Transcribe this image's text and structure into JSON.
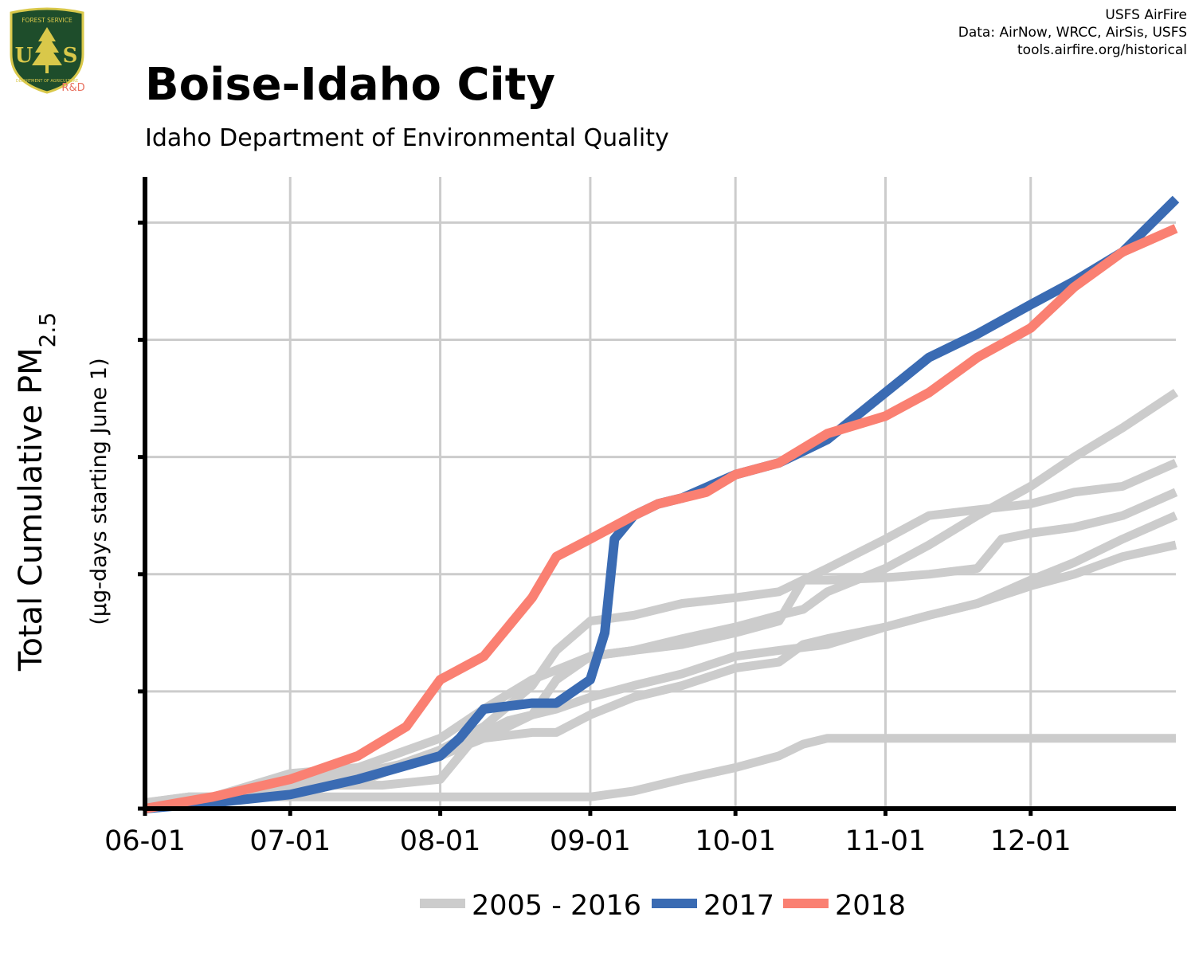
{
  "header": {
    "title": "Boise-Idaho City",
    "subtitle": "Idaho Department of Environmental Quality",
    "credits": [
      "USFS AirFire",
      "Data: AirNow, WRCC, AirSis, USFS",
      "tools.airfire.org/historical"
    ]
  },
  "logo": {
    "top_text": "FOREST SERVICE",
    "letters": "US",
    "bottom_text": "DEPARTMENT OF AGRICULTURE",
    "tag": "R&D",
    "colors": {
      "shield": "#1e4d2b",
      "border": "#d9c84a",
      "tag": "#e8705e"
    }
  },
  "colors": {
    "historical": "#cccccc",
    "2017": "#3a6bb3",
    "2018": "#fa8072",
    "grid": "#cccccc",
    "axis": "#000000"
  },
  "chart_data": {
    "type": "line",
    "ylabel": "Total Cumulative PM",
    "ylabel_sub": "2.5",
    "ylabel2": "(µg-days starting June 1)",
    "y_tick_labels_shown": false,
    "ylim": [
      0,
      5.2
    ],
    "grid": true,
    "legend_position": "bottom",
    "x_ticks": [
      "06-01",
      "07-01",
      "08-01",
      "09-01",
      "10-01",
      "11-01",
      "12-01"
    ],
    "legend": [
      "2005 - 2016",
      "2017",
      "2018"
    ],
    "series": [
      {
        "name": "2005 - 2016",
        "group": "historical",
        "points": [
          [
            "06-01",
            0.05
          ],
          [
            "06-10",
            0.1
          ],
          [
            "06-20",
            0.1
          ],
          [
            "07-01",
            0.12
          ],
          [
            "07-10",
            0.2
          ],
          [
            "07-20",
            0.2
          ],
          [
            "08-01",
            0.25
          ],
          [
            "08-08",
            0.6
          ],
          [
            "08-15",
            0.75
          ],
          [
            "08-25",
            0.85
          ],
          [
            "09-01",
            0.95
          ],
          [
            "09-10",
            1.05
          ],
          [
            "09-20",
            1.15
          ],
          [
            "10-01",
            1.3
          ],
          [
            "10-10",
            1.35
          ],
          [
            "10-20",
            1.4
          ],
          [
            "11-01",
            1.55
          ],
          [
            "11-10",
            1.65
          ],
          [
            "11-20",
            1.75
          ],
          [
            "12-01",
            1.95
          ],
          [
            "12-10",
            2.1
          ],
          [
            "12-20",
            2.3
          ],
          [
            "12-31",
            2.5
          ]
        ]
      },
      {
        "name": "2005 - 2016",
        "group": "historical",
        "points": [
          [
            "06-01",
            0.05
          ],
          [
            "06-15",
            0.1
          ],
          [
            "07-01",
            0.25
          ],
          [
            "07-15",
            0.3
          ],
          [
            "08-01",
            0.45
          ],
          [
            "08-10",
            0.6
          ],
          [
            "08-20",
            0.8
          ],
          [
            "08-25",
            1.1
          ],
          [
            "09-01",
            1.3
          ],
          [
            "09-10",
            1.35
          ],
          [
            "09-20",
            1.45
          ],
          [
            "10-01",
            1.55
          ],
          [
            "10-10",
            1.65
          ],
          [
            "10-15",
            1.7
          ],
          [
            "10-20",
            1.85
          ],
          [
            "11-01",
            2.05
          ],
          [
            "11-10",
            2.25
          ],
          [
            "11-20",
            2.5
          ],
          [
            "12-01",
            2.75
          ],
          [
            "12-10",
            3.0
          ],
          [
            "12-20",
            3.25
          ],
          [
            "12-31",
            3.55
          ]
        ]
      },
      {
        "name": "2005 - 2016",
        "group": "historical",
        "points": [
          [
            "06-01",
            0.05
          ],
          [
            "06-15",
            0.1
          ],
          [
            "07-01",
            0.3
          ],
          [
            "07-15",
            0.35
          ],
          [
            "08-01",
            0.6
          ],
          [
            "08-10",
            0.85
          ],
          [
            "08-20",
            1.1
          ],
          [
            "09-01",
            1.3
          ],
          [
            "09-10",
            1.35
          ],
          [
            "09-20",
            1.4
          ],
          [
            "10-01",
            1.5
          ],
          [
            "10-10",
            1.6
          ],
          [
            "10-15",
            1.95
          ],
          [
            "10-20",
            2.05
          ],
          [
            "11-01",
            2.3
          ],
          [
            "11-10",
            2.5
          ],
          [
            "11-20",
            2.55
          ],
          [
            "12-01",
            2.6
          ],
          [
            "12-10",
            2.7
          ],
          [
            "12-20",
            2.75
          ],
          [
            "12-31",
            2.95
          ]
        ]
      },
      {
        "name": "2005 - 2016",
        "group": "historical",
        "points": [
          [
            "06-01",
            0.05
          ],
          [
            "06-15",
            0.1
          ],
          [
            "07-01",
            0.2
          ],
          [
            "07-15",
            0.25
          ],
          [
            "08-01",
            0.5
          ],
          [
            "08-10",
            0.7
          ],
          [
            "08-20",
            1.05
          ],
          [
            "08-25",
            1.35
          ],
          [
            "09-01",
            1.6
          ],
          [
            "09-10",
            1.65
          ],
          [
            "09-20",
            1.75
          ],
          [
            "10-01",
            1.8
          ],
          [
            "10-10",
            1.85
          ],
          [
            "10-15",
            1.95
          ],
          [
            "10-20",
            1.95
          ],
          [
            "11-01",
            1.97
          ],
          [
            "11-10",
            2.0
          ],
          [
            "11-20",
            2.05
          ],
          [
            "11-25",
            2.3
          ],
          [
            "12-01",
            2.35
          ],
          [
            "12-10",
            2.4
          ],
          [
            "12-20",
            2.5
          ],
          [
            "12-31",
            2.7
          ]
        ]
      },
      {
        "name": "2005 - 2016",
        "group": "historical",
        "points": [
          [
            "06-01",
            0.05
          ],
          [
            "06-15",
            0.1
          ],
          [
            "07-01",
            0.18
          ],
          [
            "07-15",
            0.22
          ],
          [
            "08-01",
            0.5
          ],
          [
            "08-10",
            0.6
          ],
          [
            "08-20",
            0.65
          ],
          [
            "08-25",
            0.65
          ],
          [
            "09-01",
            0.8
          ],
          [
            "09-10",
            0.95
          ],
          [
            "09-20",
            1.05
          ],
          [
            "10-01",
            1.2
          ],
          [
            "10-10",
            1.25
          ],
          [
            "10-15",
            1.4
          ],
          [
            "10-20",
            1.45
          ],
          [
            "11-01",
            1.55
          ],
          [
            "11-10",
            1.65
          ],
          [
            "11-20",
            1.75
          ],
          [
            "12-01",
            1.9
          ],
          [
            "12-10",
            2.0
          ],
          [
            "12-20",
            2.15
          ],
          [
            "12-31",
            2.25
          ]
        ]
      },
      {
        "name": "2005 - 2016",
        "group": "historical",
        "points": [
          [
            "06-01",
            0.05
          ],
          [
            "06-10",
            0.1
          ],
          [
            "07-01",
            0.1
          ],
          [
            "07-15",
            0.1
          ],
          [
            "08-01",
            0.1
          ],
          [
            "08-20",
            0.1
          ],
          [
            "09-01",
            0.1
          ],
          [
            "09-10",
            0.15
          ],
          [
            "09-20",
            0.25
          ],
          [
            "10-01",
            0.35
          ],
          [
            "10-10",
            0.45
          ],
          [
            "10-15",
            0.55
          ],
          [
            "10-20",
            0.6
          ],
          [
            "11-01",
            0.6
          ],
          [
            "11-20",
            0.6
          ],
          [
            "12-01",
            0.6
          ],
          [
            "12-20",
            0.6
          ],
          [
            "12-31",
            0.6
          ]
        ]
      },
      {
        "name": "2017",
        "group": "2017",
        "points": [
          [
            "06-01",
            0.0
          ],
          [
            "06-15",
            0.05
          ],
          [
            "07-01",
            0.12
          ],
          [
            "07-15",
            0.25
          ],
          [
            "08-01",
            0.45
          ],
          [
            "08-05",
            0.6
          ],
          [
            "08-10",
            0.85
          ],
          [
            "08-20",
            0.9
          ],
          [
            "08-25",
            0.9
          ],
          [
            "09-01",
            1.1
          ],
          [
            "09-04",
            1.5
          ],
          [
            "09-06",
            2.3
          ],
          [
            "09-10",
            2.5
          ],
          [
            "09-15",
            2.6
          ],
          [
            "09-20",
            2.65
          ],
          [
            "10-01",
            2.85
          ],
          [
            "10-10",
            2.95
          ],
          [
            "10-20",
            3.15
          ],
          [
            "11-01",
            3.55
          ],
          [
            "11-10",
            3.85
          ],
          [
            "11-20",
            4.05
          ],
          [
            "12-01",
            4.3
          ],
          [
            "12-10",
            4.5
          ],
          [
            "12-20",
            4.75
          ],
          [
            "12-31",
            5.2
          ]
        ]
      },
      {
        "name": "2018",
        "group": "2018",
        "points": [
          [
            "06-01",
            0.0
          ],
          [
            "06-15",
            0.1
          ],
          [
            "07-01",
            0.25
          ],
          [
            "07-15",
            0.45
          ],
          [
            "07-25",
            0.7
          ],
          [
            "08-01",
            1.1
          ],
          [
            "08-10",
            1.3
          ],
          [
            "08-20",
            1.8
          ],
          [
            "08-25",
            2.15
          ],
          [
            "09-01",
            2.3
          ],
          [
            "09-10",
            2.5
          ],
          [
            "09-15",
            2.6
          ],
          [
            "09-25",
            2.7
          ],
          [
            "10-01",
            2.85
          ],
          [
            "10-10",
            2.95
          ],
          [
            "10-20",
            3.2
          ],
          [
            "11-01",
            3.35
          ],
          [
            "11-10",
            3.55
          ],
          [
            "11-20",
            3.85
          ],
          [
            "12-01",
            4.1
          ],
          [
            "12-10",
            4.45
          ],
          [
            "12-20",
            4.75
          ],
          [
            "12-31",
            4.95
          ]
        ]
      }
    ]
  }
}
